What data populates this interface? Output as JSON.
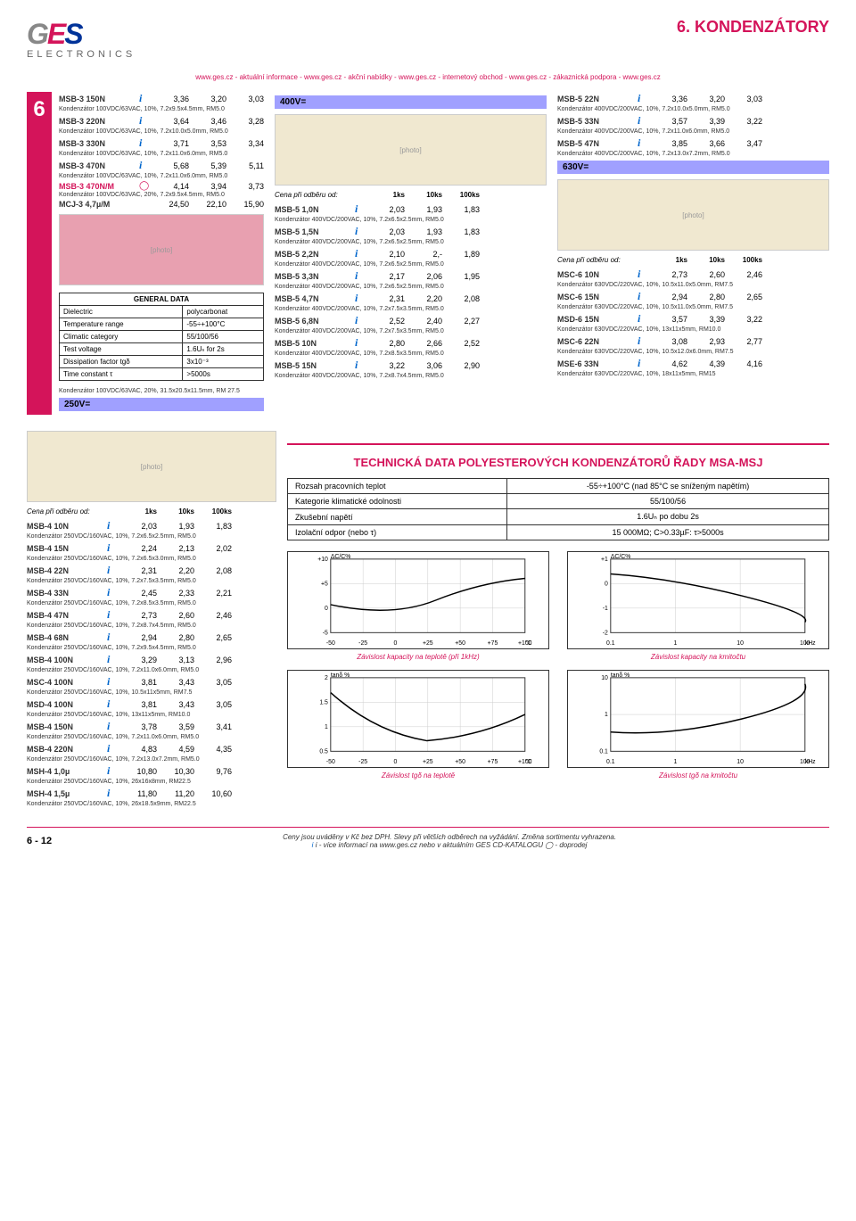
{
  "header": {
    "logo": {
      "g": "G",
      "e": "E",
      "s": "S",
      "sub": "ELECTRONICS"
    },
    "title": "6. KONDENZÁTORY"
  },
  "links": "www.ges.cz - aktuální informace - www.ges.cz - akční nabídky - www.ges.cz - internetový obchod - www.ges.cz - zákaznická podpora - www.ges.cz",
  "side_tab": "6",
  "price_hdr": {
    "lbl": "Cena při odběru od:",
    "p1": "1ks",
    "p2": "10ks",
    "p3": "100ks"
  },
  "col1": {
    "items": [
      {
        "n": "MSB-3 150N",
        "i": true,
        "p": [
          "3,36",
          "3,20",
          "3,03"
        ],
        "d": "Kondenzátor 100VDC/63VAC, 10%, 7.2x9.5x4.5mm, RM5.0"
      },
      {
        "n": "MSB-3 220N",
        "i": true,
        "p": [
          "3,64",
          "3,46",
          "3,28"
        ],
        "d": "Kondenzátor 100VDC/63VAC, 10%, 7.2x10.0x5.0mm, RM5.0"
      },
      {
        "n": "MSB-3 330N",
        "i": true,
        "p": [
          "3,71",
          "3,53",
          "3,34"
        ],
        "d": "Kondenzátor 100VDC/63VAC, 10%, 7.2x11.0x6.0mm, RM5.0"
      },
      {
        "n": "MSB-3 470N",
        "i": true,
        "p": [
          "5,68",
          "5,39",
          "5,11"
        ],
        "d": "Kondenzátor 100VDC/63VAC, 10%, 7.2x11.0x6.0mm, RM5.0"
      },
      {
        "n": "MSB-3 470N/M",
        "red": true,
        "o": true,
        "p": [
          "4,14",
          "3,94",
          "3,73"
        ],
        "d": "Kondenzátor 100VDC/63VAC, 20%, 7.2x9.5x4.5mm, RM5.0"
      },
      {
        "n": "MCJ-3 4,7µ/M",
        "p": [
          "24,50",
          "22,10",
          "15,90"
        ],
        "d": ""
      }
    ],
    "gen_title": "GENERAL DATA",
    "gen": [
      [
        "Dielectric",
        "polycarbonat"
      ],
      [
        "Temperature range",
        "-55÷+100°C"
      ],
      [
        "Climatic category",
        "55/100/56"
      ],
      [
        "Test voltage",
        "1.6Uₙ for 2s"
      ],
      [
        "Dissipation factor tgδ",
        "3x10⁻³"
      ],
      [
        "Time constant τ",
        ">5000s"
      ]
    ],
    "gen_foot": "Kondenzátor 100VDC/63VAC, 20%, 31.5x20.5x11.5mm, RM 27.5",
    "v250": "250V="
  },
  "col2": {
    "v400": "400V=",
    "items": [
      {
        "n": "MSB-5 1,0N",
        "i": true,
        "p": [
          "2,03",
          "1,93",
          "1,83"
        ],
        "d": "Kondenzátor 400VDC/200VAC, 10%, 7.2x6.5x2.5mm, RM5.0"
      },
      {
        "n": "MSB-5 1,5N",
        "i": true,
        "p": [
          "2,03",
          "1,93",
          "1,83"
        ],
        "d": "Kondenzátor 400VDC/200VAC, 10%, 7.2x6.5x2.5mm, RM5.0"
      },
      {
        "n": "MSB-5 2,2N",
        "i": true,
        "p": [
          "2,10",
          "2,-",
          "1,89"
        ],
        "d": "Kondenzátor 400VDC/200VAC, 10%, 7.2x6.5x2.5mm, RM5.0"
      },
      {
        "n": "MSB-5 3,3N",
        "i": true,
        "p": [
          "2,17",
          "2,06",
          "1,95"
        ],
        "d": "Kondenzátor 400VDC/200VAC, 10%, 7.2x6.5x2.5mm, RM5.0"
      },
      {
        "n": "MSB-5 4,7N",
        "i": true,
        "p": [
          "2,31",
          "2,20",
          "2,08"
        ],
        "d": "Kondenzátor 400VDC/200VAC, 10%, 7.2x7.5x3.5mm, RM5.0"
      },
      {
        "n": "MSB-5 6,8N",
        "i": true,
        "p": [
          "2,52",
          "2,40",
          "2,27"
        ],
        "d": "Kondenzátor 400VDC/200VAC, 10%, 7.2x7.5x3.5mm, RM5.0"
      },
      {
        "n": "MSB-5 10N",
        "i": true,
        "p": [
          "2,80",
          "2,66",
          "2,52"
        ],
        "d": "Kondenzátor 400VDC/200VAC, 10%, 7.2x8.5x3.5mm, RM5.0"
      },
      {
        "n": "MSB-5 15N",
        "i": true,
        "p": [
          "3,22",
          "3,06",
          "2,90"
        ],
        "d": "Kondenzátor 400VDC/200VAC, 10%, 7.2x8.7x4.5mm, RM5.0"
      }
    ]
  },
  "col3": {
    "items_top": [
      {
        "n": "MSB-5 22N",
        "i": true,
        "p": [
          "3,36",
          "3,20",
          "3,03"
        ],
        "d": "Kondenzátor 400VDC/200VAC, 10%, 7.2x10.0x5.0mm, RM5.0"
      },
      {
        "n": "MSB-5 33N",
        "i": true,
        "p": [
          "3,57",
          "3,39",
          "3,22"
        ],
        "d": "Kondenzátor 400VDC/200VAC, 10%, 7.2x11.0x6.0mm, RM5.0"
      },
      {
        "n": "MSB-5 47N",
        "i": true,
        "p": [
          "3,85",
          "3,66",
          "3,47"
        ],
        "d": "Kondenzátor 400VDC/200VAC, 10%, 7.2x13.0x7.2mm, RM5.0"
      }
    ],
    "v630": "630V=",
    "items_bot": [
      {
        "n": "MSC-6 10N",
        "i": true,
        "p": [
          "2,73",
          "2,60",
          "2,46"
        ],
        "d": "Kondenzátor 630VDC/220VAC, 10%, 10.5x11.0x5.0mm, RM7.5"
      },
      {
        "n": "MSC-6 15N",
        "i": true,
        "p": [
          "2,94",
          "2,80",
          "2,65"
        ],
        "d": "Kondenzátor 630VDC/220VAC, 10%, 10.5x11.0x5.0mm, RM7.5"
      },
      {
        "n": "MSD-6 15N",
        "i": true,
        "p": [
          "3,57",
          "3,39",
          "3,22"
        ],
        "d": "Kondenzátor 630VDC/220VAC, 10%, 13x11x5mm, RM10.0"
      },
      {
        "n": "MSC-6 22N",
        "i": true,
        "p": [
          "3,08",
          "2,93",
          "2,77"
        ],
        "d": "Kondenzátor 630VDC/220VAC, 10%, 10.5x12.0x6.0mm, RM7.5"
      },
      {
        "n": "MSE-6 33N",
        "i": true,
        "p": [
          "4,62",
          "4,39",
          "4,16"
        ],
        "d": "Kondenzátor 630VDC/220VAC, 10%, 18x11x5mm, RM15"
      }
    ]
  },
  "lower_col1": {
    "items": [
      {
        "n": "MSB-4 10N",
        "i": true,
        "p": [
          "2,03",
          "1,93",
          "1,83"
        ],
        "d": "Kondenzátor 250VDC/160VAC, 10%, 7.2x6.5x2.5mm, RM5.0"
      },
      {
        "n": "MSB-4 15N",
        "i": true,
        "p": [
          "2,24",
          "2,13",
          "2,02"
        ],
        "d": "Kondenzátor 250VDC/160VAC, 10%, 7.2x6.5x3.0mm, RM5.0"
      },
      {
        "n": "MSB-4 22N",
        "i": true,
        "p": [
          "2,31",
          "2,20",
          "2,08"
        ],
        "d": "Kondenzátor 250VDC/160VAC, 10%, 7.2x7.5x3.5mm, RM5.0"
      },
      {
        "n": "MSB-4 33N",
        "i": true,
        "p": [
          "2,45",
          "2,33",
          "2,21"
        ],
        "d": "Kondenzátor 250VDC/160VAC, 10%, 7.2x8.5x3.5mm, RM5.0"
      },
      {
        "n": "MSB-4 47N",
        "i": true,
        "p": [
          "2,73",
          "2,60",
          "2,46"
        ],
        "d": "Kondenzátor 250VDC/160VAC, 10%, 7.2x8.7x4.5mm, RM5.0"
      },
      {
        "n": "MSB-4 68N",
        "i": true,
        "p": [
          "2,94",
          "2,80",
          "2,65"
        ],
        "d": "Kondenzátor 250VDC/160VAC, 10%, 7.2x9.5x4.5mm, RM5.0"
      },
      {
        "n": "MSB-4 100N",
        "i": true,
        "p": [
          "3,29",
          "3,13",
          "2,96"
        ],
        "d": "Kondenzátor 250VDC/160VAC, 10%, 7.2x11.0x6.0mm, RM5.0"
      },
      {
        "n": "MSC-4 100N",
        "i": true,
        "p": [
          "3,81",
          "3,43",
          "3,05"
        ],
        "d": "Kondenzátor 250VDC/160VAC, 10%, 10.5x11x5mm, RM7.5"
      },
      {
        "n": "MSD-4 100N",
        "i": true,
        "p": [
          "3,81",
          "3,43",
          "3,05"
        ],
        "d": "Kondenzátor 250VDC/160VAC, 10%, 13x11x5mm, RM10.0"
      },
      {
        "n": "MSB-4 150N",
        "i": true,
        "p": [
          "3,78",
          "3,59",
          "3,41"
        ],
        "d": "Kondenzátor 250VDC/160VAC, 10%, 7.2x11.0x6.0mm, RM5.0"
      },
      {
        "n": "MSB-4 220N",
        "i": true,
        "p": [
          "4,83",
          "4,59",
          "4,35"
        ],
        "d": "Kondenzátor 250VDC/160VAC, 10%, 7.2x13.0x7.2mm, RM5.0"
      },
      {
        "n": "MSH-4 1,0µ",
        "i": true,
        "p": [
          "10,80",
          "10,30",
          "9,76"
        ],
        "d": "Kondenzátor 250VDC/160VAC, 10%, 26x16x8mm, RM22.5"
      },
      {
        "n": "MSH-4 1,5µ",
        "i": true,
        "p": [
          "11,80",
          "11,20",
          "10,60"
        ],
        "d": "Kondenzátor 250VDC/160VAC, 10%, 26x18.5x9mm, RM22.5"
      }
    ]
  },
  "tech": {
    "title": "TECHNICKÁ DATA POLYESTEROVÝCH KONDENZÁTORŮ ŘADY MSA-MSJ",
    "rows": [
      [
        "Rozsah pracovních teplot",
        "-55÷+100°C (nad 85°C se sníženým napětím)"
      ],
      [
        "Kategorie klimatické odolnosti",
        "55/100/56"
      ],
      [
        "Zkušební napětí",
        "1.6Uₙ po dobu 2s"
      ],
      [
        "Izolační odpor (nebo τ)",
        "15 000MΩ; C>0.33µF: τ>5000s"
      ]
    ],
    "chart1": {
      "yl": "ΔC/C%",
      "xticks": [
        "-50",
        "-25",
        "0",
        "+25",
        "+50",
        "+75",
        "+100"
      ],
      "xunit": "°C",
      "yt": [
        "+10",
        "+5",
        "0",
        "-5"
      ],
      "cap": "Závislost kapacity na teplotě (při 1kHz)"
    },
    "chart2": {
      "yl": "ΔC/C%",
      "xticks": [
        "0.1",
        "1",
        "10",
        "100"
      ],
      "xunit": "kHz",
      "yt": [
        "+1",
        "0",
        "-1",
        "-2"
      ],
      "cap": "Závislost kapacity na kmitočtu"
    },
    "chart3": {
      "yl": "tanδ %",
      "xticks": [
        "-50",
        "-25",
        "0",
        "+25",
        "+50",
        "+75",
        "+100"
      ],
      "xunit": "°C",
      "yt": [
        "2",
        "1.5",
        "1",
        "0.5"
      ],
      "cap": "Závislost tgδ na teplotě"
    },
    "chart4": {
      "yl": "tanδ %",
      "xticks": [
        "0.1",
        "1",
        "10",
        "100"
      ],
      "xunit": "kHz",
      "yt": [
        "10",
        "1",
        "0.1"
      ],
      "cap": "Závislost tgδ na kmitočtu"
    }
  },
  "footer": {
    "pn": "6 - 12",
    "main": "Ceny jsou uváděny v Kč bez DPH. Slevy při větších odběrech na vyžádání. Změna sortimentu vyhrazena.",
    "sub": "i - více informací na www.ges.cz nebo v aktuálním GES CD-KATALOGU    ◯ - doprodej"
  }
}
